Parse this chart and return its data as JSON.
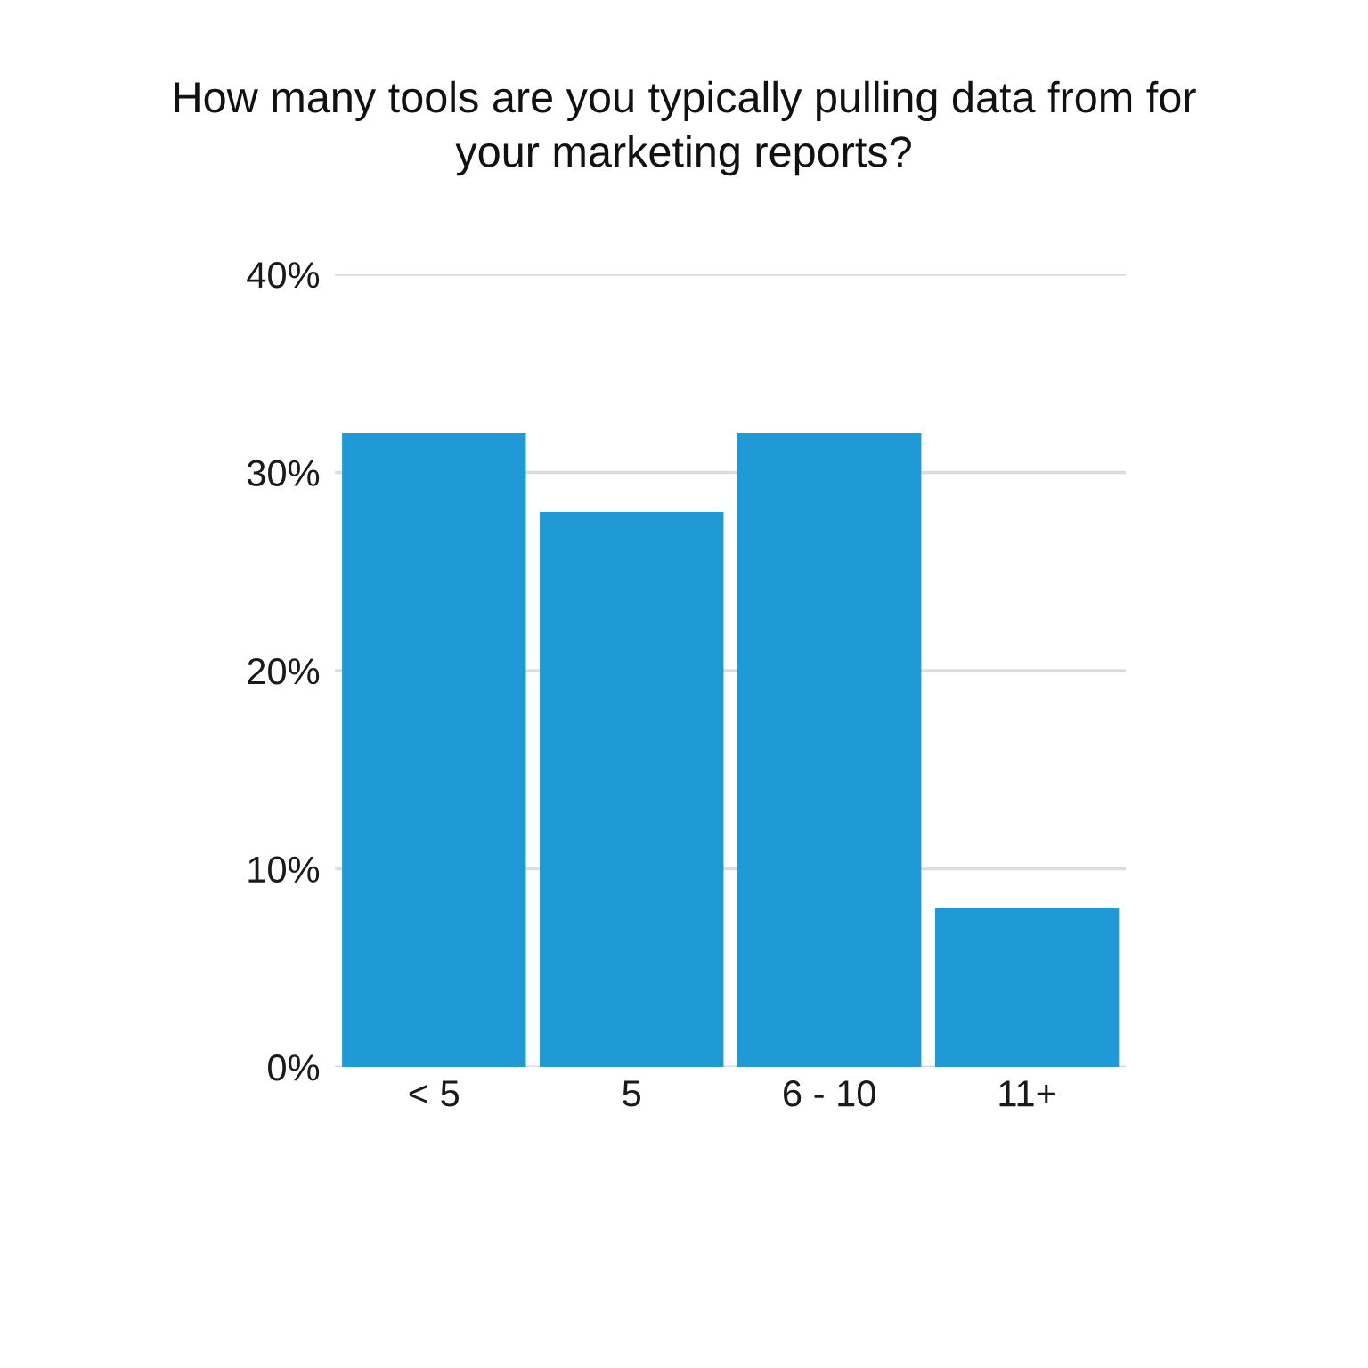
{
  "chart_data": {
    "type": "bar",
    "title": "How many tools are you typically pulling data from for\nyour marketing reports?",
    "categories": [
      "< 5",
      "5",
      "6 - 10",
      "11+"
    ],
    "values": [
      32,
      28,
      32,
      8
    ],
    "color": "#209ad6",
    "ylim": [
      0,
      40
    ],
    "yticks": [
      {
        "value": 0,
        "label": "0%"
      },
      {
        "value": 10,
        "label": "10%"
      },
      {
        "value": 20,
        "label": "20%"
      },
      {
        "value": 30,
        "label": "30%"
      },
      {
        "value": 40,
        "label": "40%"
      }
    ],
    "grid": "y",
    "legend": false
  }
}
